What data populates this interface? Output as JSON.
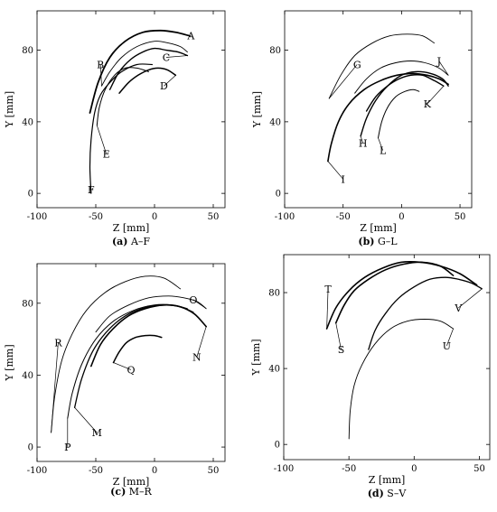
{
  "chart_data": [
    {
      "type": "line",
      "caption_tag": "(a)",
      "caption_text": " A–F",
      "xlabel": "Z [mm]",
      "ylabel": "Y [mm]",
      "xlim": [
        -100,
        60
      ],
      "ylim": [
        -8,
        102
      ],
      "xticks": [
        "-100",
        "-50",
        "0",
        "50"
      ],
      "yticks": [
        "0",
        "40",
        "80"
      ],
      "series": [
        {
          "name": "A",
          "label_at": [
            31,
            88
          ],
          "x": [
            -55,
            -48,
            -38,
            -25,
            -10,
            5,
            18,
            30
          ],
          "y": [
            45,
            62,
            76,
            85,
            90,
            91,
            90,
            88
          ]
        },
        {
          "name": "B",
          "label_at": [
            -46,
            72
          ],
          "x": [
            -45,
            -38,
            -28,
            -15,
            0,
            12,
            22,
            28
          ],
          "y": [
            60,
            68,
            76,
            82,
            85,
            84,
            82,
            79
          ]
        },
        {
          "name": "C",
          "label_at": [
            10,
            76
          ],
          "x": [
            -38,
            -30,
            -20,
            -10,
            0,
            10,
            20,
            28
          ],
          "y": [
            58,
            68,
            75,
            79,
            81,
            80,
            79,
            77
          ]
        },
        {
          "name": "D",
          "label_at": [
            8,
            60
          ],
          "x": [
            -30,
            -22,
            -14,
            -5,
            3,
            11,
            18
          ],
          "y": [
            56,
            62,
            66,
            69,
            70,
            69,
            66
          ]
        },
        {
          "name": "E",
          "label_at": [
            -41,
            22
          ],
          "x": [
            -49,
            -47,
            -42,
            -34,
            -25,
            -15,
            -5
          ],
          "y": [
            38,
            48,
            58,
            66,
            70,
            70,
            68
          ]
        },
        {
          "name": "F",
          "label_at": [
            -54,
            2
          ],
          "x": [
            -54,
            -55,
            -54,
            -51,
            -46,
            -38,
            -28,
            -15,
            -2
          ],
          "y": [
            0,
            15,
            30,
            45,
            55,
            62,
            68,
            72,
            72
          ]
        }
      ]
    },
    {
      "type": "line",
      "caption_tag": "(b)",
      "caption_text": " G–L",
      "xlabel": "Z [mm]",
      "ylabel": "Y [mm]",
      "xlim": [
        -100,
        60
      ],
      "ylim": [
        -8,
        102
      ],
      "xticks": [
        "-100",
        "-50",
        "0",
        "50"
      ],
      "yticks": [
        "0",
        "40",
        "80"
      ],
      "series": [
        {
          "name": "G",
          "label_at": [
            -38,
            72
          ],
          "x": [
            -62,
            -52,
            -40,
            -25,
            -10,
            5,
            18,
            28
          ],
          "y": [
            53,
            66,
            77,
            84,
            88,
            89,
            88,
            84
          ]
        },
        {
          "name": "H",
          "label_at": [
            -33,
            28
          ],
          "x": [
            -35,
            -30,
            -22,
            -12,
            0,
            12,
            25,
            35,
            40
          ],
          "y": [
            32,
            42,
            52,
            60,
            66,
            68,
            67,
            64,
            60
          ]
        },
        {
          "name": "I",
          "label_at": [
            -50,
            8
          ],
          "x": [
            -63,
            -60,
            -54,
            -45,
            -32,
            -18,
            -4,
            10,
            22,
            32,
            40
          ],
          "y": [
            18,
            28,
            40,
            50,
            58,
            63,
            66,
            67,
            66,
            64,
            61
          ]
        },
        {
          "name": "J",
          "label_at": [
            32,
            74
          ],
          "x": [
            -40,
            -30,
            -18,
            -5,
            8,
            20,
            32,
            40
          ],
          "y": [
            56,
            64,
            70,
            73,
            74,
            73,
            70,
            66
          ]
        },
        {
          "name": "K",
          "label_at": [
            22,
            50
          ],
          "x": [
            -30,
            -22,
            -12,
            -2,
            8,
            18,
            28,
            36
          ],
          "y": [
            46,
            54,
            60,
            64,
            66,
            66,
            63,
            60
          ]
        },
        {
          "name": "L",
          "label_at": [
            -16,
            24
          ],
          "x": [
            -20,
            -17,
            -12,
            -5,
            3,
            10,
            15
          ],
          "y": [
            31,
            40,
            48,
            54,
            57,
            58,
            57
          ]
        }
      ]
    },
    {
      "type": "line",
      "caption_tag": "(c)",
      "caption_text": " M–R",
      "xlabel": "Z [mm]",
      "ylabel": "Y [mm]",
      "xlim": [
        -100,
        60
      ],
      "ylim": [
        -8,
        102
      ],
      "xticks": [
        "-100",
        "-50",
        "0",
        "50"
      ],
      "yticks": [
        "0",
        "40",
        "80"
      ],
      "series": [
        {
          "name": "M",
          "label_at": [
            -49,
            8
          ],
          "x": [
            -68,
            -62,
            -52,
            -38,
            -22,
            -5,
            10,
            22,
            33
          ],
          "y": [
            22,
            38,
            54,
            66,
            74,
            78,
            79,
            78,
            75
          ]
        },
        {
          "name": "N",
          "label_at": [
            36,
            50
          ],
          "x": [
            -54,
            -46,
            -35,
            -22,
            -8,
            8,
            22,
            34,
            44
          ],
          "y": [
            45,
            57,
            66,
            73,
            77,
            79,
            78,
            74,
            67
          ]
        },
        {
          "name": "O",
          "label_at": [
            33,
            82
          ],
          "x": [
            -50,
            -38,
            -22,
            -5,
            12,
            25,
            36,
            44
          ],
          "y": [
            64,
            73,
            79,
            83,
            84,
            83,
            81,
            77
          ]
        },
        {
          "name": "P",
          "label_at": [
            -74,
            0
          ],
          "x": [
            -74,
            -70,
            -62,
            -50,
            -35,
            -18,
            0,
            15,
            28
          ],
          "y": [
            16,
            30,
            46,
            60,
            70,
            76,
            79,
            79,
            77
          ]
        },
        {
          "name": "Q",
          "label_at": [
            -20,
            43
          ],
          "x": [
            -35,
            -30,
            -24,
            -16,
            -8,
            0,
            6
          ],
          "y": [
            47,
            53,
            58,
            61,
            62,
            62,
            61
          ]
        },
        {
          "name": "R",
          "label_at": [
            -82,
            58
          ],
          "x": [
            -88,
            -85,
            -79,
            -70,
            -58,
            -42,
            -25,
            -8,
            8,
            22
          ],
          "y": [
            8,
            28,
            48,
            63,
            76,
            86,
            92,
            95,
            94,
            88
          ]
        }
      ]
    },
    {
      "type": "line",
      "caption_tag": "(d)",
      "caption_text": " S–V",
      "xlabel": "Z [mm]",
      "ylabel": "Y [mm]",
      "xlim": [
        -100,
        58
      ],
      "ylim": [
        -8,
        100
      ],
      "xticks": [
        "-100",
        "-50",
        "0",
        "50"
      ],
      "yticks": [
        "0",
        "40",
        "80"
      ],
      "series": [
        {
          "name": "S",
          "label_at": [
            -56,
            50
          ],
          "x": [
            -60,
            -54,
            -46,
            -35,
            -22,
            -8,
            6,
            20,
            30
          ],
          "y": [
            64,
            73,
            81,
            87,
            92,
            95,
            96,
            94,
            89
          ]
        },
        {
          "name": "T",
          "label_at": [
            -66,
            82
          ],
          "x": [
            -67,
            -60,
            -50,
            -38,
            -24,
            -10,
            5,
            20,
            35,
            48
          ],
          "y": [
            61,
            72,
            81,
            88,
            93,
            96,
            96,
            94,
            90,
            84
          ]
        },
        {
          "name": "U",
          "label_at": [
            25,
            52
          ],
          "x": [
            -50,
            -49,
            -46,
            -40,
            -30,
            -18,
            -5,
            8,
            20,
            30
          ],
          "y": [
            3,
            18,
            31,
            42,
            53,
            61,
            65,
            66,
            65,
            61
          ]
        },
        {
          "name": "V",
          "label_at": [
            34,
            72
          ],
          "x": [
            -35,
            -30,
            -22,
            -12,
            0,
            12,
            24,
            34,
            44,
            52
          ],
          "y": [
            50,
            60,
            69,
            77,
            83,
            87,
            88,
            87,
            85,
            82
          ]
        }
      ]
    }
  ]
}
